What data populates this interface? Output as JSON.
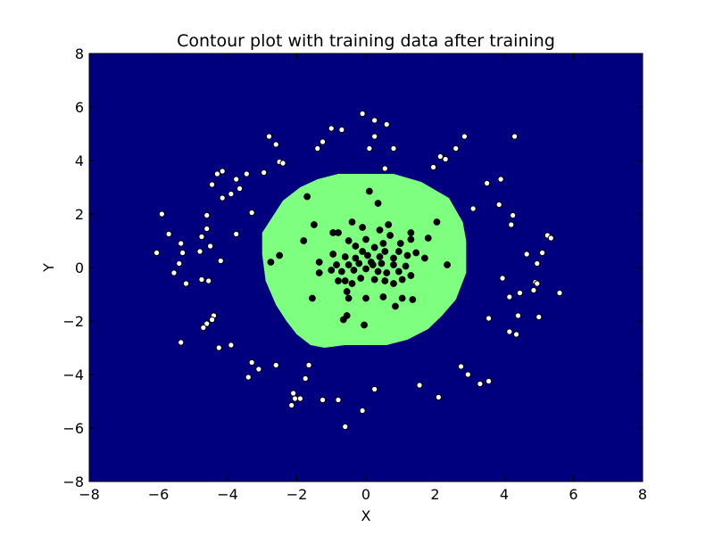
{
  "chart_data": {
    "type": "scatter",
    "title": "Contour plot with training data after training",
    "xlabel": "X",
    "ylabel": "Y",
    "xlim": [
      -8,
      8
    ],
    "ylim": [
      -8,
      8
    ],
    "xticks": [
      -8,
      -6,
      -4,
      -2,
      0,
      2,
      4,
      6,
      8
    ],
    "yticks": [
      -8,
      -6,
      -4,
      -2,
      0,
      2,
      4,
      6,
      8
    ],
    "tick_labels_x": [
      "−8",
      "−6",
      "−4",
      "−2",
      "0",
      "2",
      "4",
      "6",
      "8"
    ],
    "tick_labels_y": [
      "−8",
      "−6",
      "−4",
      "−2",
      "0",
      "2",
      "4",
      "6",
      "8"
    ],
    "grid": false,
    "colors": {
      "outer_region": "#00007f",
      "inner_region": "#7fff7f",
      "outer_points": "#ffffff",
      "inner_points": "#000000"
    },
    "decision_region": {
      "class": "inner",
      "vertices": [
        [
          -0.8,
          3.5
        ],
        [
          0.8,
          3.5
        ],
        [
          1.6,
          3.2
        ],
        [
          2.4,
          2.6
        ],
        [
          2.8,
          1.7
        ],
        [
          2.9,
          1.0
        ],
        [
          2.9,
          -0.2
        ],
        [
          2.6,
          -1.2
        ],
        [
          2.2,
          -1.8
        ],
        [
          1.8,
          -2.3
        ],
        [
          1.2,
          -2.7
        ],
        [
          0.6,
          -2.9
        ],
        [
          -0.6,
          -2.9
        ],
        [
          -1.2,
          -3.0
        ],
        [
          -1.6,
          -2.9
        ],
        [
          -2.0,
          -2.5
        ],
        [
          -2.3,
          -2.0
        ],
        [
          -2.6,
          -1.4
        ],
        [
          -2.9,
          -0.5
        ],
        [
          -3.0,
          0.5
        ],
        [
          -3.0,
          1.3
        ],
        [
          -2.7,
          1.9
        ],
        [
          -2.4,
          2.5
        ],
        [
          -1.9,
          3.0
        ],
        [
          -1.4,
          3.3
        ]
      ]
    },
    "series": [
      {
        "class": "inner",
        "points": [
          [
            -1.7,
            2.65
          ],
          [
            0.1,
            2.85
          ],
          [
            0.35,
            2.4
          ],
          [
            -1.5,
            1.6
          ],
          [
            -0.4,
            1.7
          ],
          [
            0.65,
            1.6
          ],
          [
            2.05,
            1.7
          ],
          [
            -0.95,
            1.3
          ],
          [
            -0.8,
            1.3
          ],
          [
            -0.1,
            1.5
          ],
          [
            0.4,
            1.4
          ],
          [
            0.7,
            1.2
          ],
          [
            1.3,
            1.3
          ],
          [
            -0.5,
            1.0
          ],
          [
            0.0,
            1.05
          ],
          [
            0.5,
            0.9
          ],
          [
            1.0,
            0.9
          ],
          [
            1.3,
            1.05
          ],
          [
            1.8,
            1.1
          ],
          [
            -1.8,
            1.0
          ],
          [
            -0.3,
            0.8
          ],
          [
            0.25,
            0.75
          ],
          [
            0.55,
            0.6
          ],
          [
            0.95,
            0.6
          ],
          [
            1.45,
            0.55
          ],
          [
            -2.5,
            0.45
          ],
          [
            -0.95,
            0.5
          ],
          [
            -0.6,
            0.4
          ],
          [
            -0.3,
            0.35
          ],
          [
            0.05,
            0.45
          ],
          [
            0.4,
            0.4
          ],
          [
            0.8,
            0.35
          ],
          [
            1.2,
            0.45
          ],
          [
            1.7,
            0.35
          ],
          [
            -1.35,
            0.2
          ],
          [
            -0.85,
            0.1
          ],
          [
            -0.5,
            0.1
          ],
          [
            -0.2,
            0.15
          ],
          [
            0.15,
            0.2
          ],
          [
            0.45,
            0.15
          ],
          [
            0.8,
            0.1
          ],
          [
            1.15,
            0.05
          ],
          [
            -2.75,
            0.2
          ],
          [
            -1.0,
            -0.1
          ],
          [
            -0.7,
            -0.15
          ],
          [
            -0.35,
            -0.1
          ],
          [
            0.0,
            -0.05
          ],
          [
            0.35,
            -0.15
          ],
          [
            0.6,
            -0.2
          ],
          [
            0.95,
            -0.15
          ],
          [
            1.3,
            -0.3
          ],
          [
            2.35,
            0.1
          ],
          [
            -1.35,
            -0.2
          ],
          [
            -0.8,
            -0.5
          ],
          [
            -0.6,
            -0.5
          ],
          [
            -0.15,
            -0.4
          ],
          [
            0.25,
            -0.45
          ],
          [
            0.55,
            -0.5
          ],
          [
            0.8,
            -0.6
          ],
          [
            1.05,
            -0.45
          ],
          [
            -1.55,
            -1.15
          ],
          [
            -0.55,
            -0.9
          ],
          [
            -0.5,
            -1.15
          ],
          [
            0.0,
            -1.15
          ],
          [
            0.5,
            -1.1
          ],
          [
            1.05,
            -1.15
          ],
          [
            1.35,
            -1.2
          ],
          [
            0.85,
            -1.45
          ],
          [
            -0.55,
            -1.8
          ],
          [
            -0.65,
            -1.95
          ],
          [
            -0.05,
            -2.15
          ],
          [
            -0.4,
            -0.6
          ],
          [
            0.2,
            0.1
          ],
          [
            -0.1,
            0.6
          ]
        ]
      },
      {
        "class": "outer",
        "points": [
          [
            -0.1,
            5.75
          ],
          [
            0.25,
            5.5
          ],
          [
            0.6,
            5.35
          ],
          [
            -1.0,
            5.2
          ],
          [
            -0.7,
            5.15
          ],
          [
            0.25,
            4.9
          ],
          [
            -2.8,
            4.9
          ],
          [
            -2.6,
            4.6
          ],
          [
            -1.25,
            4.7
          ],
          [
            -1.4,
            4.45
          ],
          [
            0.1,
            4.45
          ],
          [
            0.8,
            4.45
          ],
          [
            2.6,
            4.45
          ],
          [
            2.85,
            4.9
          ],
          [
            4.3,
            4.9
          ],
          [
            -2.5,
            3.95
          ],
          [
            -2.4,
            3.9
          ],
          [
            2.3,
            4.05
          ],
          [
            2.15,
            4.15
          ],
          [
            -4.3,
            3.5
          ],
          [
            -4.15,
            3.6
          ],
          [
            -3.45,
            3.5
          ],
          [
            -2.95,
            3.55
          ],
          [
            0.55,
            3.7
          ],
          [
            1.95,
            3.75
          ],
          [
            -4.45,
            3.1
          ],
          [
            -3.75,
            3.3
          ],
          [
            -3.65,
            2.95
          ],
          [
            3.5,
            3.15
          ],
          [
            3.9,
            3.3
          ],
          [
            -4.6,
            1.95
          ],
          [
            -4.6,
            1.45
          ],
          [
            -4.15,
            2.6
          ],
          [
            -3.9,
            2.75
          ],
          [
            -3.3,
            2.05
          ],
          [
            3.1,
            2.2
          ],
          [
            3.85,
            2.35
          ],
          [
            4.25,
            1.95
          ],
          [
            4.2,
            1.6
          ],
          [
            -5.9,
            2.0
          ],
          [
            -5.7,
            1.25
          ],
          [
            -5.35,
            0.9
          ],
          [
            -4.75,
            1.15
          ],
          [
            -4.5,
            0.8
          ],
          [
            -3.75,
            1.25
          ],
          [
            5.25,
            1.2
          ],
          [
            5.35,
            1.1
          ],
          [
            -6.05,
            0.55
          ],
          [
            -5.3,
            0.55
          ],
          [
            -4.8,
            0.6
          ],
          [
            -4.2,
            0.25
          ],
          [
            4.65,
            0.5
          ],
          [
            5.1,
            0.55
          ],
          [
            -5.4,
            0.15
          ],
          [
            -5.55,
            -0.2
          ],
          [
            4.95,
            0.15
          ],
          [
            -5.2,
            -0.6
          ],
          [
            -4.75,
            -0.45
          ],
          [
            -4.55,
            -0.5
          ],
          [
            3.95,
            -0.4
          ],
          [
            4.9,
            -0.55
          ],
          [
            4.95,
            -0.6
          ],
          [
            4.15,
            -1.1
          ],
          [
            4.45,
            -0.95
          ],
          [
            4.85,
            -0.85
          ],
          [
            5.6,
            -0.95
          ],
          [
            -4.4,
            -1.8
          ],
          [
            -4.45,
            -1.95
          ],
          [
            -4.6,
            -2.1
          ],
          [
            -4.7,
            -2.25
          ],
          [
            3.55,
            -1.9
          ],
          [
            4.4,
            -1.8
          ],
          [
            5.0,
            -1.85
          ],
          [
            4.15,
            -2.4
          ],
          [
            4.35,
            -2.5
          ],
          [
            -5.35,
            -2.8
          ],
          [
            -4.25,
            -3.0
          ],
          [
            -3.9,
            -2.9
          ],
          [
            -3.3,
            -3.55
          ],
          [
            -3.4,
            -4.1
          ],
          [
            -3.1,
            -3.8
          ],
          [
            -2.6,
            -3.65
          ],
          [
            -1.65,
            -3.65
          ],
          [
            -1.75,
            -4.15
          ],
          [
            2.75,
            -3.7
          ],
          [
            2.95,
            -4.0
          ],
          [
            3.3,
            -4.35
          ],
          [
            3.55,
            -4.25
          ],
          [
            1.55,
            -4.4
          ],
          [
            0.25,
            -4.55
          ],
          [
            -2.1,
            -4.7
          ],
          [
            -2.05,
            -4.9
          ],
          [
            -2.15,
            -5.15
          ],
          [
            -1.25,
            -4.95
          ],
          [
            -0.8,
            -4.95
          ],
          [
            -1.9,
            -4.9
          ],
          [
            2.1,
            -4.85
          ],
          [
            -0.1,
            -5.35
          ],
          [
            -0.6,
            -5.95
          ]
        ]
      }
    ]
  }
}
